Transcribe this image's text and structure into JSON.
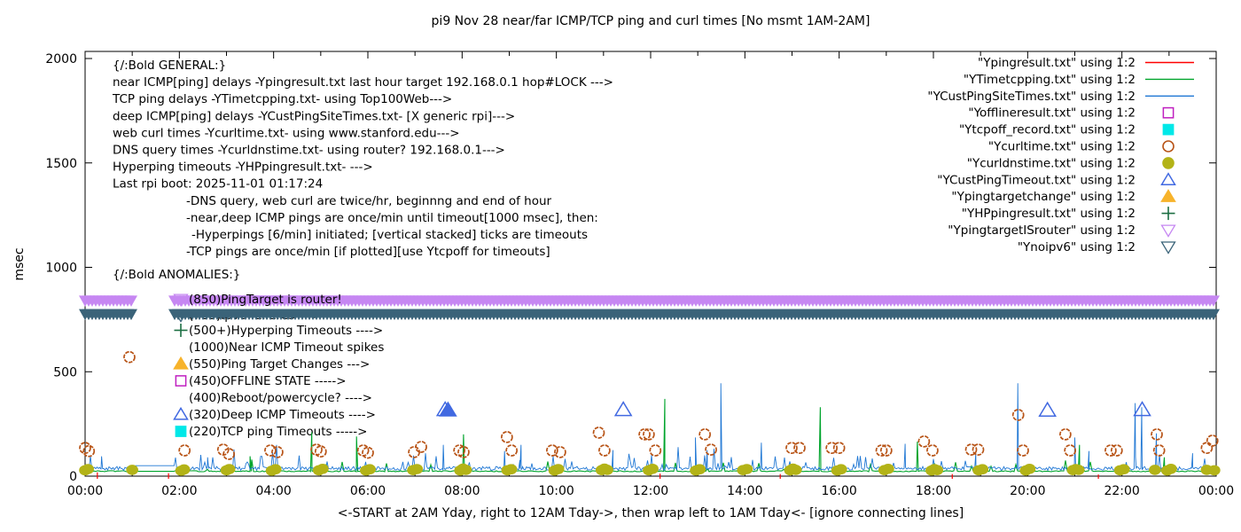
{
  "chart_data": {
    "type": "line",
    "title": "pi9 Nov 28  near/far ICMP/TCP ping and curl times [No msmt 1AM-2AM]",
    "xlabel": "<-START at 2AM Yday, right to 12AM Tday->, then wrap left to 1AM Tday<- [ignore connecting lines]",
    "ylabel": "msec",
    "ylim": [
      0,
      2035
    ],
    "xlim_hours": [
      0,
      24
    ],
    "grid": false,
    "y_ticks": [
      0,
      500,
      1000,
      1500,
      2000
    ],
    "x_ticks": [
      {
        "hour": 0,
        "label": "00:00"
      },
      {
        "hour": 2,
        "label": "02:00"
      },
      {
        "hour": 4,
        "label": "04:00"
      },
      {
        "hour": 6,
        "label": "06:00"
      },
      {
        "hour": 8,
        "label": "08:00"
      },
      {
        "hour": 10,
        "label": "10:00"
      },
      {
        "hour": 12,
        "label": "12:00"
      },
      {
        "hour": 14,
        "label": "14:00"
      },
      {
        "hour": 16,
        "label": "16:00"
      },
      {
        "hour": 18,
        "label": "18:00"
      },
      {
        "hour": 20,
        "label": "20:00"
      },
      {
        "hour": 22,
        "label": "22:00"
      },
      {
        "hour": 24,
        "label": "00:00"
      }
    ],
    "no_measurement_gap_hours": [
      1.05,
      1.9
    ],
    "legend_position": "top-right-inside",
    "legend": [
      {
        "label": "\"Ypingresult.txt\" using 1:2",
        "sample": "line",
        "color": "#ff0000",
        "filled": false
      },
      {
        "label": "\"YTimetcpping.txt\" using 1:2",
        "sample": "line",
        "color": "#00a42c",
        "filled": false
      },
      {
        "label": "\"YCustPingSiteTimes.txt\" using 1:2",
        "sample": "line",
        "color": "#1f77d4",
        "filled": false
      },
      {
        "label": "\"Yofflineresult.txt\" using 1:2",
        "sample": "square",
        "color": "#c020c0",
        "filled": false
      },
      {
        "label": "\"Ytcpoff_record.txt\" using 1:2",
        "sample": "square",
        "color": "#00e8e8",
        "filled": true
      },
      {
        "label": "\"Ycurltime.txt\" using 1:2",
        "sample": "circle",
        "color": "#b85417",
        "filled": false
      },
      {
        "label": "\"Ycurldnstime.txt\" using 1:2",
        "sample": "circle",
        "color": "#b3b317",
        "filled": true
      },
      {
        "label": "\"YCustPingTimeout.txt\" using 1:2",
        "sample": "triangle-up",
        "color": "#4169e1",
        "filled": false
      },
      {
        "label": "\"Ypingtargetchange\" using 1:2",
        "sample": "triangle-up",
        "color": "#f7b32b",
        "filled": true
      },
      {
        "label": "\"YHPpingresult.txt\" using 1:2",
        "sample": "plus",
        "color": "#1b6e42",
        "filled": true
      },
      {
        "label": "\"YpingtargetISrouter\" using 1:2",
        "sample": "triangle-down",
        "color": "#c687f2",
        "filled": false
      },
      {
        "label": "\"Ynoipv6\" using 1:2",
        "sample": "triangle-down",
        "color": "#3a6379",
        "filled": false
      }
    ],
    "annotations": {
      "general": [
        "{/:Bold GENERAL:}",
        "near ICMP[ping] delays -Ypingresult.txt last hour target 192.168.0.1 hop#LOCK --->",
        "TCP ping delays -YTimetcpping.txt- using Top100Web--->",
        "deep ICMP[ping] delays -YCustPingSiteTimes.txt- [X generic rpi]--->",
        "web curl times -Ycurltime.txt- using www.stanford.edu--->",
        "DNS query times -Ycurldnstime.txt- using router? 192.168.0.1--->",
        "Hyperping timeouts -YHPpingresult.txt- --->",
        "Last rpi boot: 2025-11-01 01:17:24",
        "-DNS query, web curl are twice/hr, beginnng and end of hour",
        "-near,deep ICMP pings are once/min until timeout[1000 msec], then:",
        "-Hyperpings [6/min] initiated; [vertical stacked] ticks are timeouts",
        "-TCP pings are once/min [if plotted][use Ytcpoff for timeouts]"
      ],
      "anomalies_heading": "{/:Bold ANOMALIES:}",
      "anomalies": [
        {
          "marker": "triangle-down",
          "color": "#c687f2",
          "filled": false,
          "label": "(850)PingTarget is router!"
        },
        {
          "marker": "triangle-down",
          "color": "#3a6379",
          "filled": false,
          "label": "(785)Ipv6 failures --->",
          "note": "mostly hidden behind band"
        },
        {
          "marker": "plus",
          "color": "#1b6e42",
          "filled": true,
          "label": "(500+)Hyperping Timeouts ---->"
        },
        {
          "marker": "none",
          "color": "#000000",
          "filled": false,
          "label": "(1000)Near ICMP Timeout spikes"
        },
        {
          "marker": "triangle-up",
          "color": "#f7b32b",
          "filled": true,
          "label": "(550)Ping Target Changes --->"
        },
        {
          "marker": "square",
          "color": "#c020c0",
          "filled": false,
          "label": "(450)OFFLINE STATE ----->"
        },
        {
          "marker": "none",
          "color": "#000000",
          "filled": false,
          "label": "(400)Reboot/powercycle? ---->"
        },
        {
          "marker": "triangle-up",
          "color": "#4169e1",
          "filled": false,
          "label": "(320)Deep ICMP Timeouts ---->"
        },
        {
          "marker": "square",
          "color": "#00e8e8",
          "filled": true,
          "label": "(220)TCP ping Timeouts ----->"
        }
      ]
    },
    "bands": [
      {
        "name": "YpingtargetISrouter",
        "msec": 850,
        "color": "#c687f2",
        "marker": "triangle-down"
      },
      {
        "name": "Ynoipv6",
        "msec": 785,
        "color": "#3a6379",
        "marker": "triangle-down"
      }
    ],
    "series": {
      "near_icmp_red": {
        "name": "Ypingresult.txt",
        "color": "#ff0000",
        "impulses": [
          [
            0.26,
            18
          ],
          [
            1.77,
            14
          ],
          [
            12.2,
            12
          ],
          [
            14.75,
            10
          ],
          [
            18.4,
            10
          ],
          [
            21.5,
            8
          ]
        ]
      },
      "tcp_ping_green": {
        "name": "YTimetcpping.txt",
        "color": "#00a42c",
        "baseline_msec": 23,
        "spikes": [
          [
            3.5,
            95
          ],
          [
            4.81,
            210
          ],
          [
            5.76,
            190
          ],
          [
            8.03,
            200
          ],
          [
            12.3,
            370
          ],
          [
            15.6,
            330
          ],
          [
            17.66,
            165
          ],
          [
            21.1,
            150
          ],
          [
            22.9,
            90
          ]
        ]
      },
      "deep_icmp_blue": {
        "name": "YCustPingSiteTimes.txt",
        "color": "#1f77d4",
        "baseline_msec": 38,
        "spikes": [
          [
            0.35,
            95
          ],
          [
            2.6,
            90
          ],
          [
            7.6,
            150
          ],
          [
            8.9,
            120
          ],
          [
            9.25,
            150
          ],
          [
            11.2,
            125
          ],
          [
            12.95,
            185
          ],
          [
            13.2,
            125
          ],
          [
            13.49,
            445
          ],
          [
            14.35,
            160
          ],
          [
            17.4,
            155
          ],
          [
            18.9,
            110
          ],
          [
            19.79,
            445
          ],
          [
            21.0,
            185
          ],
          [
            21.3,
            120
          ],
          [
            22.28,
            350
          ],
          [
            22.42,
            330
          ],
          [
            22.73,
            205
          ],
          [
            23.5,
            110
          ]
        ]
      }
    },
    "scatter": {
      "curl_circles": {
        "name": "Ycurltime.txt",
        "color": "#b85417",
        "marker": "circle-open",
        "points": [
          [
            0.0,
            135
          ],
          [
            0.08,
            120
          ],
          [
            0.94,
            570
          ],
          [
            2.11,
            123
          ],
          [
            2.93,
            127
          ],
          [
            3.05,
            106
          ],
          [
            3.93,
            123
          ],
          [
            4.08,
            115
          ],
          [
            4.91,
            127
          ],
          [
            5.0,
            118
          ],
          [
            5.9,
            123
          ],
          [
            6.0,
            112
          ],
          [
            6.98,
            115
          ],
          [
            7.13,
            140
          ],
          [
            7.94,
            123
          ],
          [
            8.03,
            115
          ],
          [
            8.95,
            187
          ],
          [
            9.05,
            123
          ],
          [
            9.91,
            123
          ],
          [
            10.08,
            115
          ],
          [
            10.9,
            208
          ],
          [
            11.02,
            123
          ],
          [
            11.87,
            200
          ],
          [
            11.96,
            200
          ],
          [
            12.1,
            123
          ],
          [
            13.15,
            200
          ],
          [
            13.28,
            127
          ],
          [
            14.99,
            135
          ],
          [
            15.16,
            135
          ],
          [
            15.84,
            135
          ],
          [
            16.0,
            135
          ],
          [
            16.9,
            123
          ],
          [
            17.0,
            123
          ],
          [
            17.8,
            166
          ],
          [
            17.98,
            123
          ],
          [
            18.8,
            127
          ],
          [
            18.95,
            127
          ],
          [
            19.8,
            293
          ],
          [
            19.9,
            123
          ],
          [
            20.8,
            200
          ],
          [
            20.9,
            123
          ],
          [
            21.76,
            123
          ],
          [
            21.89,
            123
          ],
          [
            22.74,
            200
          ],
          [
            22.79,
            123
          ],
          [
            23.8,
            135
          ],
          [
            23.92,
            170
          ]
        ]
      },
      "dns_circles": {
        "name": "Ycurldnstime.txt",
        "color": "#b3b317",
        "marker": "circle-filled",
        "points": [
          [
            0.0,
            28
          ],
          [
            0.06,
            34
          ],
          [
            1.0,
            30
          ],
          [
            2.04,
            26
          ],
          [
            2.1,
            32
          ],
          [
            3.0,
            28
          ],
          [
            3.06,
            34
          ],
          [
            3.96,
            26
          ],
          [
            4.04,
            33
          ],
          [
            4.96,
            28
          ],
          [
            5.04,
            35
          ],
          [
            5.96,
            27
          ],
          [
            6.04,
            33
          ],
          [
            6.96,
            29
          ],
          [
            7.04,
            34
          ],
          [
            7.96,
            27
          ],
          [
            8.02,
            36
          ],
          [
            8.08,
            30
          ],
          [
            8.96,
            28
          ],
          [
            9.04,
            33
          ],
          [
            9.96,
            27
          ],
          [
            10.04,
            34
          ],
          [
            10.96,
            29
          ],
          [
            11.02,
            36
          ],
          [
            11.08,
            30
          ],
          [
            11.96,
            28
          ],
          [
            12.04,
            35
          ],
          [
            12.96,
            27
          ],
          [
            13.04,
            33
          ],
          [
            13.96,
            29
          ],
          [
            14.04,
            34
          ],
          [
            14.96,
            28
          ],
          [
            15.02,
            36
          ],
          [
            15.08,
            30
          ],
          [
            15.96,
            27
          ],
          [
            16.04,
            33
          ],
          [
            16.96,
            29
          ],
          [
            17.04,
            35
          ],
          [
            17.96,
            27
          ],
          [
            18.02,
            34
          ],
          [
            18.08,
            29
          ],
          [
            18.96,
            28
          ],
          [
            19.04,
            33
          ],
          [
            19.96,
            27
          ],
          [
            20.04,
            35
          ],
          [
            20.96,
            29
          ],
          [
            21.02,
            34
          ],
          [
            21.08,
            30
          ],
          [
            21.96,
            28
          ],
          [
            22.04,
            33
          ],
          [
            22.7,
            30
          ],
          [
            22.96,
            27
          ],
          [
            23.04,
            35
          ],
          [
            23.8,
            30
          ],
          [
            23.96,
            28
          ]
        ]
      },
      "deep_timeout_triangles": {
        "name": "YCustPingTimeout.txt",
        "color": "#4169e1",
        "marker": "triangle-up",
        "points": [
          [
            7.64,
            318,
            0
          ],
          [
            7.7,
            316,
            1
          ],
          [
            11.42,
            318,
            0
          ],
          [
            20.42,
            315,
            0
          ],
          [
            22.43,
            318,
            0
          ]
        ]
      }
    }
  }
}
